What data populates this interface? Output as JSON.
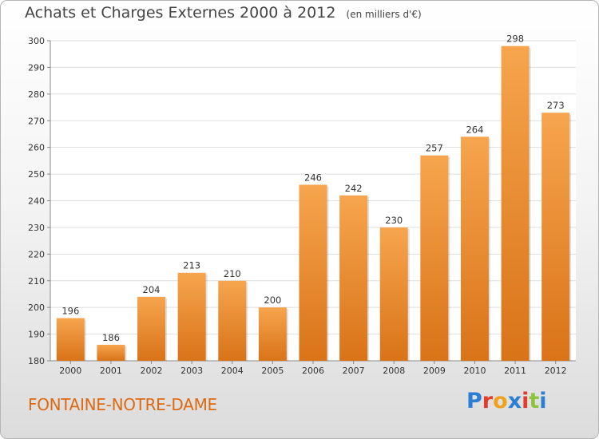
{
  "chart_data": {
    "type": "bar",
    "title": "Achats et Charges Externes 2000 à 2012",
    "subtitle": "(en milliers d'€)",
    "categories": [
      "2000",
      "2001",
      "2002",
      "2003",
      "2004",
      "2005",
      "2006",
      "2007",
      "2008",
      "2009",
      "2010",
      "2011",
      "2012"
    ],
    "values": [
      196,
      186,
      204,
      213,
      210,
      200,
      246,
      242,
      230,
      257,
      264,
      298,
      273
    ],
    "ylim": [
      180,
      300
    ],
    "yticks": [
      180,
      190,
      200,
      210,
      220,
      230,
      240,
      250,
      260,
      270,
      280,
      290,
      300
    ],
    "grid": true,
    "bar_color_top": "#f6a54e",
    "bar_color_bottom": "#d97318"
  },
  "location": "FONTAINE-NOTRE-DAME",
  "logo": {
    "letters": [
      "P",
      "r",
      "o",
      "x",
      "i",
      "t",
      "i"
    ],
    "colors": [
      "#2a7fd4",
      "#e23c2c",
      "#f0a21d",
      "#2a7fd4",
      "#e23c2c",
      "#8cc43c",
      "#2a7fd4"
    ]
  }
}
